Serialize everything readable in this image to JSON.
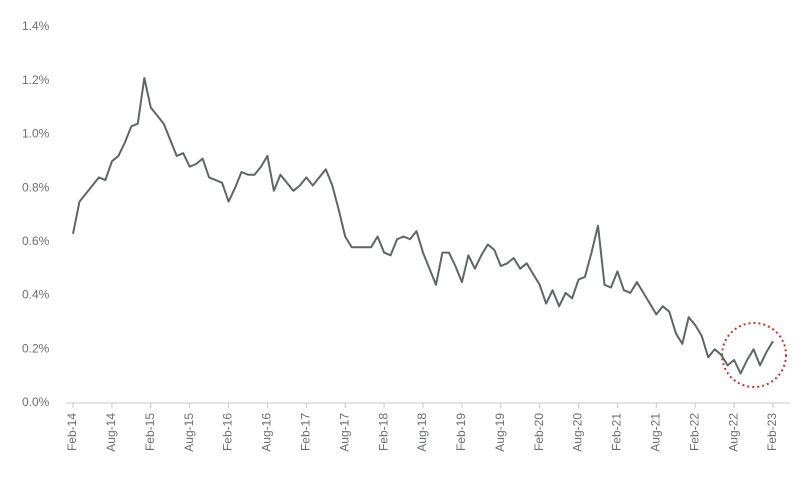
{
  "chart_data": {
    "type": "line",
    "categories": [
      "Feb-14",
      null,
      null,
      null,
      null,
      null,
      "Aug-14",
      null,
      null,
      null,
      null,
      null,
      "Feb-15",
      null,
      null,
      null,
      null,
      null,
      "Aug-15",
      null,
      null,
      null,
      null,
      null,
      "Feb-16",
      null,
      null,
      null,
      null,
      null,
      "Aug-16",
      null,
      null,
      null,
      null,
      null,
      "Feb-17",
      null,
      null,
      null,
      null,
      null,
      "Aug-17",
      null,
      null,
      null,
      null,
      null,
      "Feb-18",
      null,
      null,
      null,
      null,
      null,
      "Aug-18",
      null,
      null,
      null,
      null,
      null,
      "Feb-19",
      null,
      null,
      null,
      null,
      null,
      "Aug-19",
      null,
      null,
      null,
      null,
      null,
      "Feb-20",
      null,
      null,
      null,
      null,
      null,
      "Aug-20",
      null,
      null,
      null,
      null,
      null,
      "Feb-21",
      null,
      null,
      null,
      null,
      null,
      "Aug-21",
      null,
      null,
      null,
      null,
      null,
      "Feb-22",
      null,
      null,
      null,
      null,
      null,
      "Aug-22",
      null,
      null,
      null,
      null,
      null,
      "Feb-23"
    ],
    "values": [
      0.63,
      0.75,
      0.78,
      0.81,
      0.84,
      0.83,
      0.9,
      0.92,
      0.97,
      1.03,
      1.04,
      1.21,
      1.1,
      1.07,
      1.04,
      0.98,
      0.92,
      0.93,
      0.88,
      0.89,
      0.91,
      0.84,
      0.83,
      0.82,
      0.75,
      0.8,
      0.86,
      0.85,
      0.85,
      0.88,
      0.92,
      0.79,
      0.85,
      0.82,
      0.79,
      0.81,
      0.84,
      0.81,
      0.84,
      0.87,
      0.81,
      0.72,
      0.62,
      0.58,
      0.58,
      0.58,
      0.58,
      0.62,
      0.56,
      0.55,
      0.61,
      0.62,
      0.61,
      0.64,
      0.56,
      0.5,
      0.44,
      0.56,
      0.56,
      0.51,
      0.45,
      0.55,
      0.5,
      0.55,
      0.59,
      0.57,
      0.51,
      0.52,
      0.54,
      0.5,
      0.52,
      0.48,
      0.44,
      0.37,
      0.42,
      0.36,
      0.41,
      0.39,
      0.46,
      0.47,
      0.56,
      0.66,
      0.44,
      0.43,
      0.49,
      0.42,
      0.41,
      0.45,
      0.41,
      0.37,
      0.33,
      0.36,
      0.34,
      0.26,
      0.22,
      0.32,
      0.29,
      0.25,
      0.17,
      0.2,
      0.18,
      0.14,
      0.16,
      0.11,
      0.16,
      0.2,
      0.14,
      0.19,
      0.23
    ],
    "color": "#5f6569",
    "ylim": [
      0,
      1.4
    ],
    "yticks": [
      {
        "value": 0,
        "label": "0.0%"
      },
      {
        "value": 0.2,
        "label": "0.2%"
      },
      {
        "value": 0.4,
        "label": "0.4%"
      },
      {
        "value": 0.6,
        "label": "0.6%"
      },
      {
        "value": 0.8,
        "label": "0.8%"
      },
      {
        "value": 1.0,
        "label": "1.0%"
      },
      {
        "value": 1.2,
        "label": "1.2%"
      },
      {
        "value": 1.4,
        "label": "1.4%"
      }
    ],
    "grid": false
  }
}
